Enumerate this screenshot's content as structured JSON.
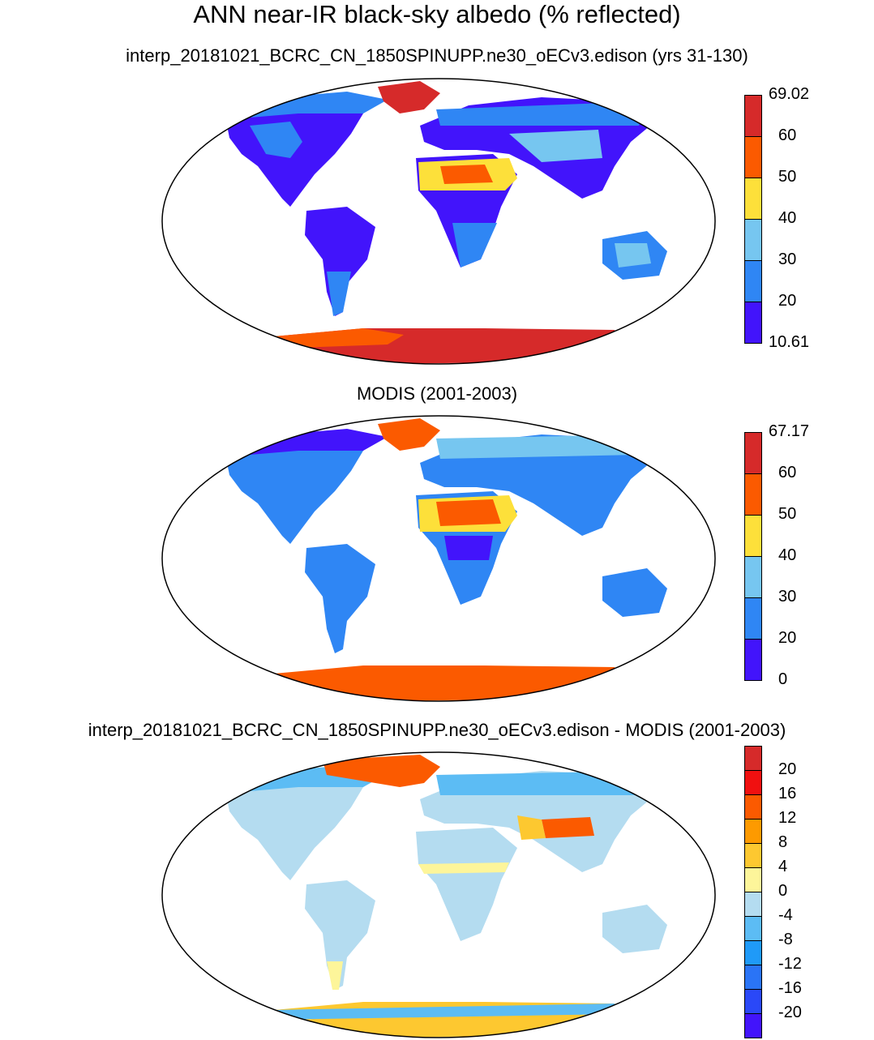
{
  "title": "ANN near-IR black-sky albedo (% reflected)",
  "panels": [
    {
      "subtitle": "interp_20181021_BCRC_CN_1850SPINUPP.ne30_oECv3.edison (yrs 31-130)",
      "colorbar": {
        "labels": [
          "69.02",
          "60",
          "50",
          "40",
          "30",
          "20",
          "10.61"
        ],
        "colors": [
          "#d62a2a",
          "#fb5a00",
          "#fde03a",
          "#76c6f0",
          "#2f86f4",
          "#4214fb"
        ]
      }
    },
    {
      "subtitle": "MODIS (2001-2003)",
      "colorbar": {
        "labels": [
          "67.17",
          "60",
          "50",
          "40",
          "30",
          "20",
          "0"
        ],
        "colors": [
          "#d62a2a",
          "#fb5a00",
          "#fde03a",
          "#76c6f0",
          "#2f86f4",
          "#4214fb"
        ]
      }
    },
    {
      "subtitle": "interp_20181021_BCRC_CN_1850SPINUPP.ne30_oECv3.edison - MODIS (2001-2003)",
      "colorbar": {
        "labels": [
          "20",
          "16",
          "12",
          "8",
          "4",
          "0",
          "-4",
          "-8",
          "-12",
          "-16",
          "-20"
        ],
        "colors": [
          "#d62a2a",
          "#f01010",
          "#fb5a00",
          "#fd9a00",
          "#fdc830",
          "#fdf59a",
          "#b4dcf0",
          "#5cbcf4",
          "#1f9af8",
          "#2a74f6",
          "#2a48f8",
          "#4214fb"
        ]
      }
    }
  ]
}
